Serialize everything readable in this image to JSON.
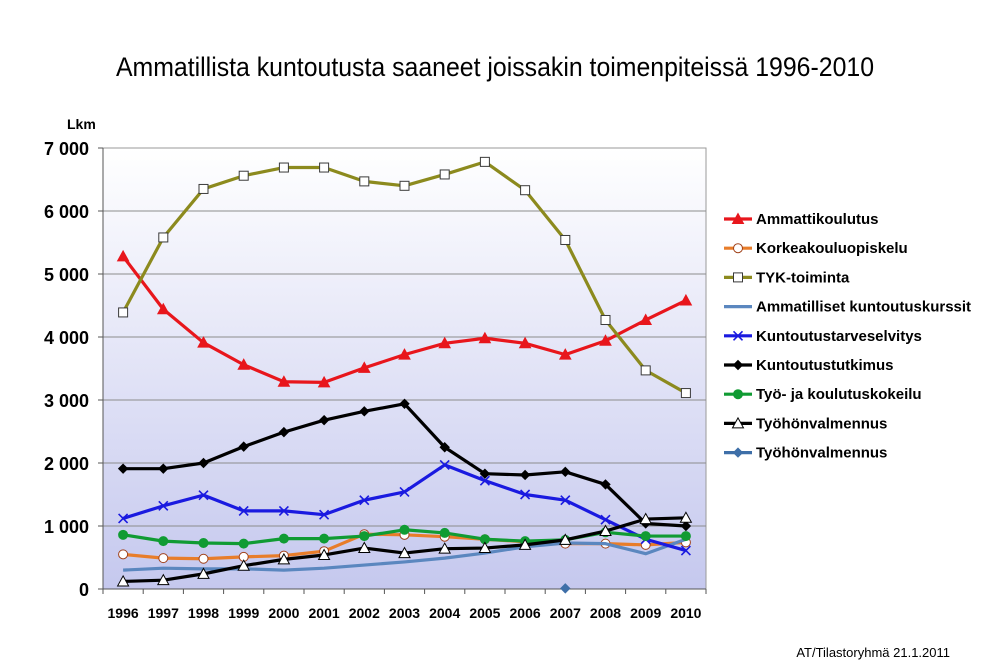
{
  "chart_data": {
    "type": "line",
    "title": "Ammatillista kuntoutusta saaneet joissakin toimenpiteissä 1996-2010",
    "ylabel": "Lkm",
    "xlabel": "",
    "ylim": [
      0,
      7000
    ],
    "yticks": [
      0,
      1000,
      2000,
      3000,
      4000,
      5000,
      6000,
      7000
    ],
    "ytick_labels": [
      "0",
      "1 000",
      "2 000",
      "3 000",
      "4 000",
      "5 000",
      "6 000",
      "7 000"
    ],
    "categories": [
      "1996",
      "1997",
      "1998",
      "1999",
      "2000",
      "2001",
      "2002",
      "2003",
      "2004",
      "2005",
      "2006",
      "2007",
      "2008",
      "2009",
      "2010"
    ],
    "grid": "horizontal",
    "legend_position": "right",
    "series": [
      {
        "name": "Ammattikoulutus",
        "color": "#e8161c",
        "marker": "triangle-filled",
        "values": [
          5280,
          4440,
          3910,
          3560,
          3290,
          3280,
          3510,
          3720,
          3900,
          3980,
          3900,
          3720,
          3940,
          4270,
          4580
        ]
      },
      {
        "name": "Korkeakouluopiskelu",
        "color": "#e87d2a",
        "marker": "circle-open",
        "values": [
          550,
          490,
          480,
          510,
          530,
          600,
          870,
          860,
          830,
          790,
          750,
          720,
          720,
          700,
          740
        ]
      },
      {
        "name": "TYK-toiminta",
        "color": "#8c8a1e",
        "marker": "square-open",
        "values": [
          4390,
          5580,
          6350,
          6560,
          6690,
          6690,
          6470,
          6400,
          6580,
          6780,
          6330,
          5540,
          4270,
          3470,
          3110
        ]
      },
      {
        "name": "Ammatilliset kuntoutuskurssit",
        "color": "#5b87bf",
        "marker": "none",
        "values": [
          300,
          330,
          320,
          320,
          300,
          330,
          380,
          430,
          490,
          570,
          670,
          730,
          720,
          560,
          790
        ]
      },
      {
        "name": "Kuntoutustarveselvitys",
        "color": "#1a1ae0",
        "marker": "x",
        "values": [
          1120,
          1320,
          1490,
          1240,
          1240,
          1180,
          1410,
          1540,
          1970,
          1720,
          1500,
          1410,
          1100,
          790,
          610
        ]
      },
      {
        "name": "Kuntoutustutkimus",
        "color": "#000000",
        "marker": "diamond-filled",
        "values": [
          1910,
          1910,
          2000,
          2260,
          2490,
          2680,
          2820,
          2940,
          2250,
          1830,
          1810,
          1860,
          1660,
          1040,
          1000
        ]
      },
      {
        "name": "Työ- ja koulutuskokeilu",
        "color": "#109b33",
        "marker": "circle-filled",
        "values": [
          860,
          760,
          730,
          720,
          800,
          800,
          840,
          940,
          890,
          790,
          760,
          780,
          900,
          840,
          840
        ]
      },
      {
        "name": "Työhönvalmennus",
        "color": "#000000",
        "marker": "triangle-open",
        "values": [
          120,
          140,
          240,
          370,
          470,
          540,
          650,
          570,
          640,
          650,
          700,
          780,
          920,
          1110,
          1130
        ]
      },
      {
        "name": "Työhönvalmennus",
        "color": "#3e6fa8",
        "marker": "diamond-filled",
        "values": [
          null,
          null,
          null,
          null,
          null,
          null,
          null,
          null,
          null,
          null,
          null,
          10,
          null,
          null,
          null
        ]
      }
    ]
  },
  "footer": {
    "note": "AT/Tilastoryhmä 21.1.2011"
  }
}
